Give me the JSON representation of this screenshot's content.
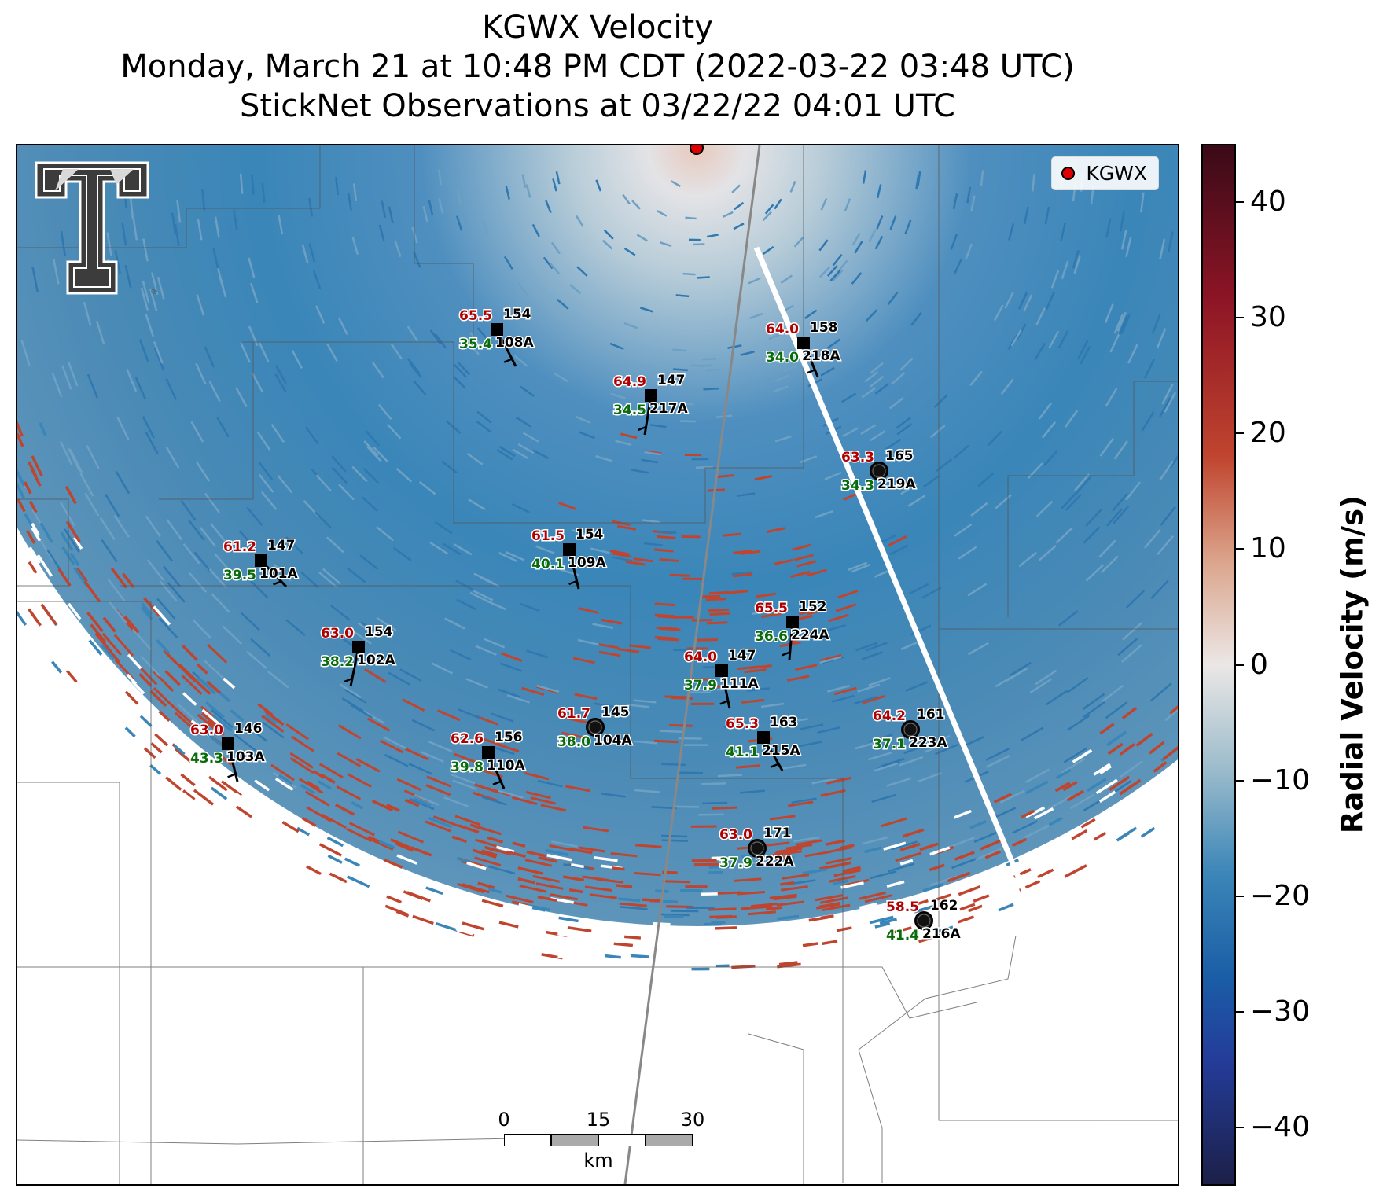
{
  "title": {
    "line1": "KGWX Velocity",
    "line2": "Monday, March 21 at 10:48 PM CDT (2022-03-22 03:48 UTC)",
    "line3": "StickNet Observations at 03/22/22 04:01 UTC"
  },
  "legend": {
    "label": "KGWX",
    "marker_color": "#e00000"
  },
  "colorbar": {
    "label": "Radial Velocity (m/s)",
    "range": [
      -45,
      45
    ],
    "ticks": [
      "40",
      "30",
      "20",
      "10",
      "0",
      "−10",
      "−20",
      "−30",
      "−40"
    ],
    "tick_values": [
      40,
      30,
      20,
      10,
      0,
      -10,
      -20,
      -30,
      -40
    ]
  },
  "scalebar": {
    "ticks": [
      "0",
      "15",
      "30"
    ],
    "unit": "km"
  },
  "logo": {
    "name": "texas-tech-double-t-logo"
  },
  "colors": {
    "temp_red": "#b00000",
    "dewpoint_green": "#0a6b0a",
    "inbound_blue": "#3a86b8",
    "outbound_red": "#c0452f",
    "radar_marker": "#e00000"
  },
  "stations": [
    {
      "id": "108A",
      "temp": "65.5",
      "dew": "35.4",
      "pres": "154",
      "marker": "square"
    },
    {
      "id": "218A",
      "temp": "64.0",
      "dew": "34.0",
      "pres": "158",
      "marker": "square"
    },
    {
      "id": "217A",
      "temp": "64.9",
      "dew": "34.5",
      "pres": "147",
      "marker": "square"
    },
    {
      "id": "219A",
      "temp": "63.3",
      "dew": "34.3",
      "pres": "165",
      "marker": "circle"
    },
    {
      "id": "101A",
      "temp": "61.2",
      "dew": "39.5",
      "pres": "147",
      "marker": "square"
    },
    {
      "id": "109A",
      "temp": "61.5",
      "dew": "40.1",
      "pres": "154",
      "marker": "square"
    },
    {
      "id": "224A",
      "temp": "65.5",
      "dew": "36.6",
      "pres": "152",
      "marker": "square"
    },
    {
      "id": "102A",
      "temp": "63.0",
      "dew": "38.2",
      "pres": "154",
      "marker": "square"
    },
    {
      "id": "111A",
      "temp": "64.0",
      "dew": "37.9",
      "pres": "147",
      "marker": "square"
    },
    {
      "id": "104A",
      "temp": "61.7",
      "dew": "38.0",
      "pres": "145",
      "marker": "circle"
    },
    {
      "id": "223A",
      "temp": "64.2",
      "dew": "37.1",
      "pres": "161",
      "marker": "circle"
    },
    {
      "id": "215A",
      "temp": "65.3",
      "dew": "41.1",
      "pres": "163",
      "marker": "square"
    },
    {
      "id": "103A",
      "temp": "63.0",
      "dew": "43.3",
      "pres": "146",
      "marker": "square"
    },
    {
      "id": "110A",
      "temp": "62.6",
      "dew": "39.8",
      "pres": "156",
      "marker": "square"
    },
    {
      "id": "222A",
      "temp": "63.0",
      "dew": "37.9",
      "pres": "171",
      "marker": "circle"
    },
    {
      "id": "216A",
      "temp": "58.5",
      "dew": "41.4",
      "pres": "162",
      "marker": "circle"
    }
  ]
}
